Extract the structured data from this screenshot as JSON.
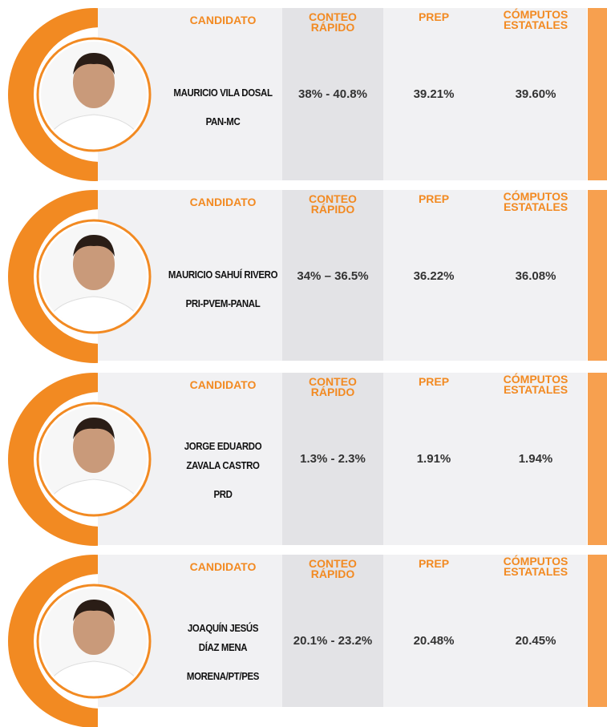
{
  "cards": [
    {
      "headers": {
        "candidate": "CANDIDATO",
        "quick_count": [
          "CONTEO",
          "RÁPIDO"
        ],
        "prep": "PREP",
        "state_count": [
          "CÓMPUTOS",
          "ESTATALES"
        ]
      },
      "name_lines": [
        "MAURICIO VILA DOSAL"
      ],
      "party": "PAN-MC",
      "quick_count": "38% - 40.8%",
      "prep": "39.21%",
      "state_count": "39.60%"
    },
    {
      "headers": {
        "candidate": "CANDIDATO",
        "quick_count": [
          "CONTEO",
          "RÁPIDO"
        ],
        "prep": "PREP",
        "state_count": [
          "CÓMPUTOS",
          "ESTATALES"
        ]
      },
      "name_lines": [
        "MAURICIO SAHUÍ RIVERO"
      ],
      "party": "PRI-PVEM-PANAL",
      "quick_count": "34% – 36.5%",
      "prep": "36.22%",
      "state_count": "36.08%"
    },
    {
      "headers": {
        "candidate": "CANDIDATO",
        "quick_count": [
          "CONTEO",
          "RÁPIDO"
        ],
        "prep": "PREP",
        "state_count": [
          "CÓMPUTOS",
          "ESTATALES"
        ]
      },
      "name_lines": [
        "JORGE EDUARDO",
        "ZAVALA CASTRO"
      ],
      "party": "PRD",
      "quick_count": "1.3% - 2.3%",
      "prep": "1.91%",
      "state_count": "1.94%"
    },
    {
      "headers": {
        "candidate": "CANDIDATO",
        "quick_count": [
          "CONTEO",
          "RÁPIDO"
        ],
        "prep": "PREP",
        "state_count": [
          "CÓMPUTOS",
          "ESTATALES"
        ]
      },
      "name_lines": [
        "JOAQUÍN JESÚS",
        "DÍAZ MENA"
      ],
      "party": "MORENA/PT/PES",
      "quick_count": "20.1% - 23.2%",
      "prep": "20.48%",
      "state_count": "20.45%"
    }
  ]
}
